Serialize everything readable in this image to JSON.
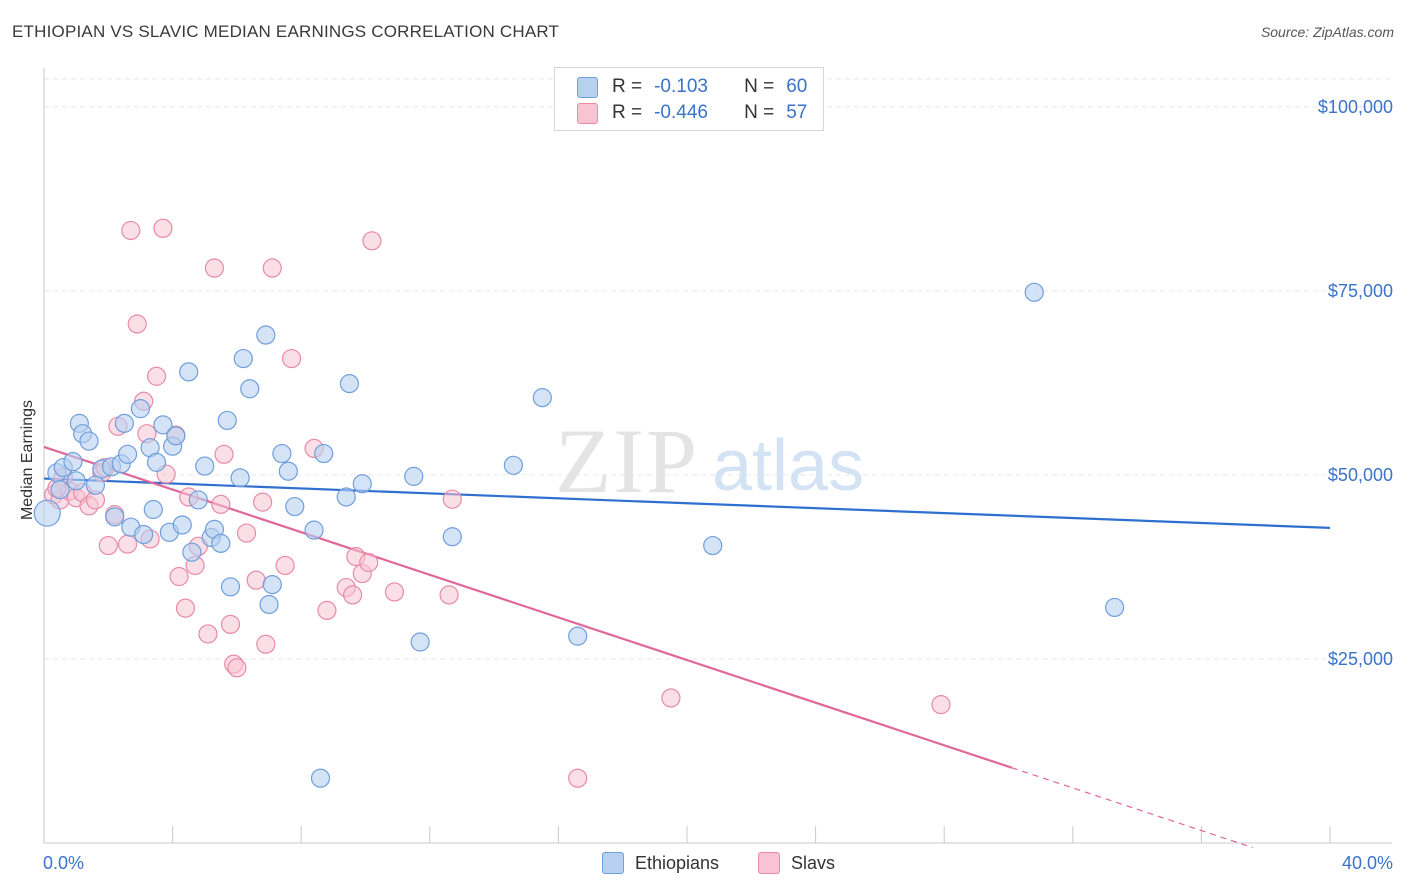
{
  "header": {
    "title": "ETHIOPIAN VS SLAVIC MEDIAN EARNINGS CORRELATION CHART",
    "source": "Source: ZipAtlas.com"
  },
  "watermark": {
    "zip": "ZIP",
    "atlas": "atlas"
  },
  "colors": {
    "ethiopians_fill": "#b8d0f0",
    "ethiopians_stroke": "#6f9fdc",
    "ethiopians_line": "#2f6fcf",
    "slavs_fill": "#f8c4d4",
    "slavs_stroke": "#e88aa8",
    "slavs_line": "#e0679a",
    "axis_text": "#3a73c9"
  },
  "legend": {
    "rows": [
      {
        "r_label": "R =",
        "r_value": "-0.103",
        "n_label": "N =",
        "n_value": "60"
      },
      {
        "r_label": "R =",
        "r_value": "-0.446",
        "n_label": "N =",
        "n_value": "57"
      }
    ],
    "series": [
      "Ethiopians",
      "Slavs"
    ]
  },
  "chart_data": {
    "type": "scatter",
    "title": "ETHIOPIAN VS SLAVIC MEDIAN EARNINGS CORRELATION CHART",
    "xlabel": "",
    "ylabel": "Median Earnings",
    "xlim": [
      0,
      40
    ],
    "ylim": [
      0,
      105000
    ],
    "x_tick_labels": [
      "0.0%",
      "40.0%"
    ],
    "y_ticks": [
      25000,
      50000,
      75000,
      100000
    ],
    "y_tick_labels": [
      "$25,000",
      "$50,000",
      "$75,000",
      "$100,000"
    ],
    "grid": true,
    "series": [
      {
        "name": "Ethiopians",
        "trend": {
          "x": [
            0,
            40
          ],
          "y": [
            49500,
            42800
          ]
        },
        "points": [
          [
            0.1,
            44800
          ],
          [
            0.4,
            50300
          ],
          [
            0.5,
            48000
          ],
          [
            0.6,
            51000
          ],
          [
            0.9,
            51800
          ],
          [
            1.0,
            49200
          ],
          [
            1.1,
            57000
          ],
          [
            1.2,
            55600
          ],
          [
            1.4,
            54600
          ],
          [
            1.6,
            48600
          ],
          [
            1.8,
            50800
          ],
          [
            2.1,
            51100
          ],
          [
            2.2,
            44300
          ],
          [
            2.4,
            51500
          ],
          [
            2.5,
            57000
          ],
          [
            2.6,
            52800
          ],
          [
            2.7,
            42900
          ],
          [
            3.0,
            59000
          ],
          [
            3.1,
            41900
          ],
          [
            3.3,
            53700
          ],
          [
            3.4,
            45300
          ],
          [
            3.5,
            51700
          ],
          [
            3.7,
            56800
          ],
          [
            3.9,
            42200
          ],
          [
            4.0,
            53900
          ],
          [
            4.1,
            55300
          ],
          [
            4.3,
            43200
          ],
          [
            4.5,
            64000
          ],
          [
            4.6,
            39500
          ],
          [
            4.8,
            46600
          ],
          [
            5.0,
            51200
          ],
          [
            5.2,
            41500
          ],
          [
            5.3,
            42600
          ],
          [
            5.5,
            40700
          ],
          [
            5.7,
            57400
          ],
          [
            5.8,
            34800
          ],
          [
            6.1,
            49600
          ],
          [
            6.2,
            65800
          ],
          [
            6.4,
            61700
          ],
          [
            6.9,
            69000
          ],
          [
            7.0,
            32400
          ],
          [
            7.1,
            35100
          ],
          [
            7.4,
            52900
          ],
          [
            7.6,
            50500
          ],
          [
            7.8,
            45700
          ],
          [
            8.4,
            42500
          ],
          [
            8.6,
            8800
          ],
          [
            8.7,
            52900
          ],
          [
            9.4,
            47000
          ],
          [
            9.5,
            62400
          ],
          [
            9.9,
            48800
          ],
          [
            11.5,
            49800
          ],
          [
            11.7,
            27300
          ],
          [
            12.7,
            41600
          ],
          [
            14.6,
            51300
          ],
          [
            15.5,
            60500
          ],
          [
            16.6,
            28100
          ],
          [
            20.8,
            40400
          ],
          [
            30.8,
            74800
          ],
          [
            33.3,
            32000
          ]
        ]
      },
      {
        "name": "Slavs",
        "trend": {
          "x": [
            0,
            40
          ],
          "y": [
            53800,
            -4100
          ]
        },
        "points": [
          [
            0.3,
            47300
          ],
          [
            0.5,
            46600
          ],
          [
            0.6,
            49700
          ],
          [
            0.8,
            47800
          ],
          [
            1.0,
            46900
          ],
          [
            1.2,
            47600
          ],
          [
            1.4,
            45800
          ],
          [
            1.6,
            46600
          ],
          [
            1.8,
            50300
          ],
          [
            2.0,
            40400
          ],
          [
            2.2,
            44600
          ],
          [
            2.3,
            56600
          ],
          [
            2.6,
            40600
          ],
          [
            2.7,
            83200
          ],
          [
            2.9,
            70500
          ],
          [
            3.1,
            60000
          ],
          [
            3.2,
            55600
          ],
          [
            3.3,
            41300
          ],
          [
            3.5,
            63400
          ],
          [
            3.7,
            83500
          ],
          [
            3.8,
            50100
          ],
          [
            4.1,
            55400
          ],
          [
            4.2,
            36200
          ],
          [
            4.4,
            31900
          ],
          [
            4.5,
            47000
          ],
          [
            4.7,
            37700
          ],
          [
            4.8,
            40300
          ],
          [
            5.1,
            28400
          ],
          [
            5.3,
            78100
          ],
          [
            5.5,
            46000
          ],
          [
            5.6,
            52800
          ],
          [
            5.8,
            29700
          ],
          [
            5.9,
            24300
          ],
          [
            6.0,
            23800
          ],
          [
            6.3,
            42100
          ],
          [
            6.6,
            35700
          ],
          [
            6.8,
            46300
          ],
          [
            6.9,
            27000
          ],
          [
            7.1,
            78100
          ],
          [
            7.5,
            37700
          ],
          [
            7.7,
            65800
          ],
          [
            8.4,
            53600
          ],
          [
            8.8,
            31600
          ],
          [
            9.4,
            34700
          ],
          [
            9.6,
            33700
          ],
          [
            9.7,
            38900
          ],
          [
            9.9,
            36600
          ],
          [
            10.1,
            38100
          ],
          [
            10.2,
            81800
          ],
          [
            10.9,
            34100
          ],
          [
            12.6,
            33700
          ],
          [
            12.7,
            46700
          ],
          [
            16.6,
            8800
          ],
          [
            19.5,
            19700
          ],
          [
            27.9,
            18800
          ],
          [
            0.4,
            48200
          ],
          [
            1.9,
            51000
          ]
        ]
      }
    ]
  }
}
